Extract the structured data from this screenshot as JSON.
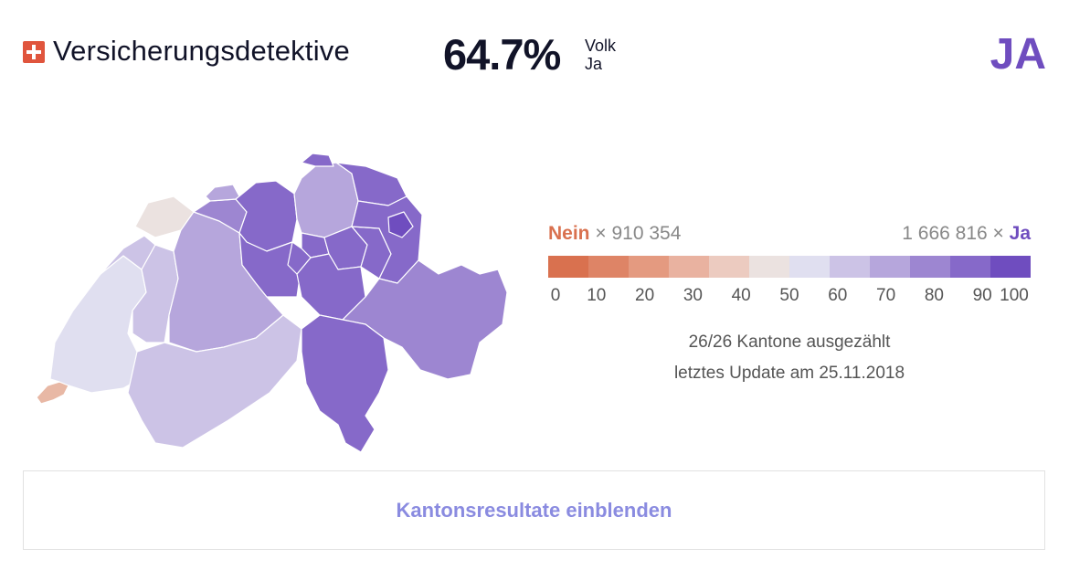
{
  "header": {
    "flag_icon": "swiss-flag-icon",
    "title": "Versicherungsdetektive",
    "percent": "64.7%",
    "percent_label_line1": "Volk",
    "percent_label_line2": "Ja",
    "verdict": "JA"
  },
  "legend": {
    "nein_label": "Nein",
    "nein_count": "× 910 354",
    "ja_count": "1 666 816 ×",
    "ja_label": "Ja",
    "ticks": [
      "0",
      "10",
      "20",
      "30",
      "40",
      "50",
      "60",
      "70",
      "80",
      "90",
      "100"
    ],
    "colors": [
      "#d9714f",
      "#de8466",
      "#e49a80",
      "#e9b2a0",
      "#eccbc0",
      "#ebe2e0",
      "#e0dff0",
      "#ccc3e6",
      "#b6a6dc",
      "#9d86d1",
      "#8669c9",
      "#6f4dbf"
    ]
  },
  "status": {
    "counted": "26/26 Kantone ausgezählt",
    "updated": "letztes Update am 25.11.2018"
  },
  "button": {
    "label": "Kantonsresultate einblenden"
  },
  "colors": {
    "ja": "#6f4dbf",
    "nein": "#d9714f",
    "button_text": "#8a8be0"
  }
}
